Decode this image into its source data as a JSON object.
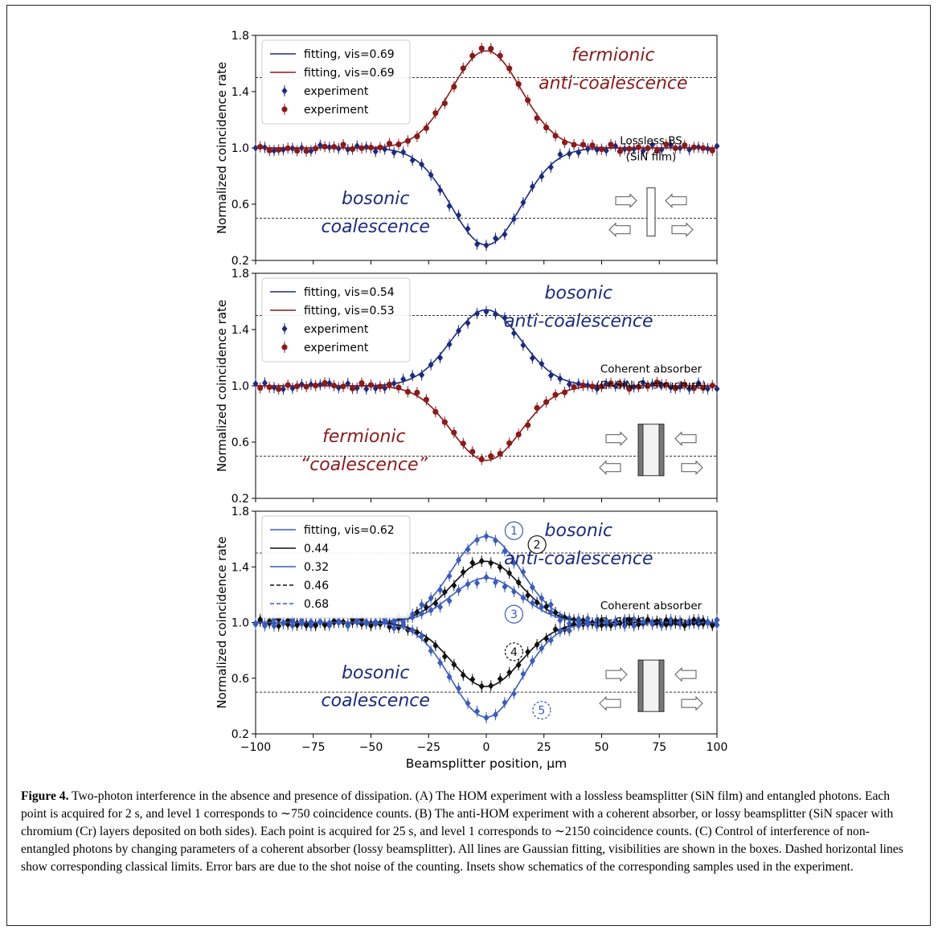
{
  "caption": {
    "label": "Figure 4.",
    "text": "Two-photon interference in the absence and presence of dissipation. (A) The HOM experiment with a lossless beamsplitter (SiN film) and entangled photons. Each point is acquired for 2 s, and level 1 corresponds to ∼750 coincidence counts. (B) The anti-HOM experiment with a coherent absorber, or lossy beamsplitter (SiN spacer with chromium (Cr) layers deposited on both sides). Each point is acquired for 25 s, and level 1 corresponds to ∼2150 coincidence counts. (C) Control of interference of non-entangled photons by changing parameters of a coherent absorber (lossy beamsplitter). All lines are Gaussian fitting, visibilities are shown in the boxes. Dashed horizontal lines show corresponding classical limits. Error bars are due to the shot noise of the counting. Insets show schematics of the corresponding samples used in the experiment."
  },
  "colors": {
    "navy": "#1c2a80",
    "darkred": "#8b1a1a",
    "blue": "#3a5bbf",
    "black": "#111111"
  },
  "chart_data": [
    {
      "type": "line",
      "panel": "A",
      "xlim": [
        -100,
        100
      ],
      "ylim": [
        0.2,
        1.8
      ],
      "yticks": [
        "0.2",
        "0.6",
        "1.0",
        "1.4",
        "1.8"
      ],
      "ylabel": "Normalized coincidence rate",
      "classical_limits": [
        1.5,
        0.5
      ],
      "legend": [
        "fitting, vis=0.69",
        "fitting, vis=0.69",
        "experiment",
        "experiment"
      ],
      "series": [
        {
          "color": "navy",
          "gauss": {
            "amp": -0.69,
            "sigma": 15
          }
        },
        {
          "color": "darkred",
          "gauss": {
            "amp": 0.69,
            "sigma": 15
          }
        }
      ],
      "annotations": [
        {
          "text": "fermionic",
          "color": "darkred",
          "x": 55,
          "y": 1.62
        },
        {
          "text": "anti-coalescence",
          "color": "darkred",
          "x": 55,
          "y": 1.42
        },
        {
          "text": "bosonic",
          "color": "navy",
          "x": -48,
          "y": 0.6
        },
        {
          "text": "coalescence",
          "color": "navy",
          "x": -48,
          "y": 0.4
        }
      ],
      "inset": [
        "Lossless BS",
        "(SiN film)"
      ]
    },
    {
      "type": "line",
      "panel": "B",
      "xlim": [
        -100,
        100
      ],
      "ylim": [
        0.2,
        1.8
      ],
      "yticks": [
        "0.2",
        "0.6",
        "1.0",
        "1.4",
        "1.8"
      ],
      "ylabel": "Normalized coincidence rate",
      "classical_limits": [
        1.5,
        0.5
      ],
      "legend": [
        "fitting, vis=0.54",
        "fitting, vis=0.53",
        "experiment",
        "experiment"
      ],
      "series": [
        {
          "color": "navy",
          "gauss": {
            "amp": 0.54,
            "sigma": 15
          }
        },
        {
          "color": "darkred",
          "gauss": {
            "amp": -0.53,
            "sigma": 15
          }
        }
      ],
      "annotations": [
        {
          "text": "bosonic",
          "color": "navy",
          "x": 40,
          "y": 1.62
        },
        {
          "text": "anti-coalescence",
          "color": "navy",
          "x": 40,
          "y": 1.42
        },
        {
          "text": "fermionic",
          "color": "darkred",
          "x": -53,
          "y": 0.6
        },
        {
          "text": "“coalescence”",
          "color": "darkred",
          "x": -53,
          "y": 0.4
        }
      ],
      "inset": [
        "Coherent absorber",
        "(Cr-SiN-Cr structure)"
      ]
    },
    {
      "type": "line",
      "panel": "C",
      "xlim": [
        -100,
        100
      ],
      "ylim": [
        0.2,
        1.8
      ],
      "yticks": [
        "0.2",
        "0.6",
        "1.0",
        "1.4",
        "1.8"
      ],
      "xticks": [
        "−100",
        "−75",
        "−50",
        "−25",
        "0",
        "25",
        "50",
        "75",
        "100"
      ],
      "xlabel": "Beamsplitter position, μm",
      "ylabel": "Normalized coincidence rate",
      "classical_limits": [
        1.5,
        0.5
      ],
      "legend": [
        "fitting, vis=0.62",
        "0.44",
        "0.32",
        "0.46",
        "0.68"
      ],
      "series": [
        {
          "color": "blue",
          "dash": false,
          "gauss": {
            "amp": 0.62,
            "sigma": 15
          }
        },
        {
          "color": "black",
          "dash": false,
          "gauss": {
            "amp": 0.44,
            "sigma": 15
          }
        },
        {
          "color": "blue",
          "dash": false,
          "gauss": {
            "amp": 0.32,
            "sigma": 15
          }
        },
        {
          "color": "black",
          "dash": true,
          "gauss": {
            "amp": -0.46,
            "sigma": 15
          }
        },
        {
          "color": "blue",
          "dash": true,
          "gauss": {
            "amp": -0.68,
            "sigma": 15
          }
        }
      ],
      "markers": [
        "1",
        "2",
        "3",
        "4",
        "5"
      ],
      "annotations": [
        {
          "text": "bosonic",
          "color": "navy",
          "x": 40,
          "y": 1.62
        },
        {
          "text": "anti-coalescence",
          "color": "navy",
          "x": 40,
          "y": 1.42
        },
        {
          "text": "bosonic",
          "color": "navy",
          "x": -48,
          "y": 0.6
        },
        {
          "text": "coalescence",
          "color": "navy",
          "x": -48,
          "y": 0.4
        }
      ],
      "inset": [
        "Coherent absorber",
        "(Cr-SiN-Cr structure)"
      ]
    }
  ]
}
